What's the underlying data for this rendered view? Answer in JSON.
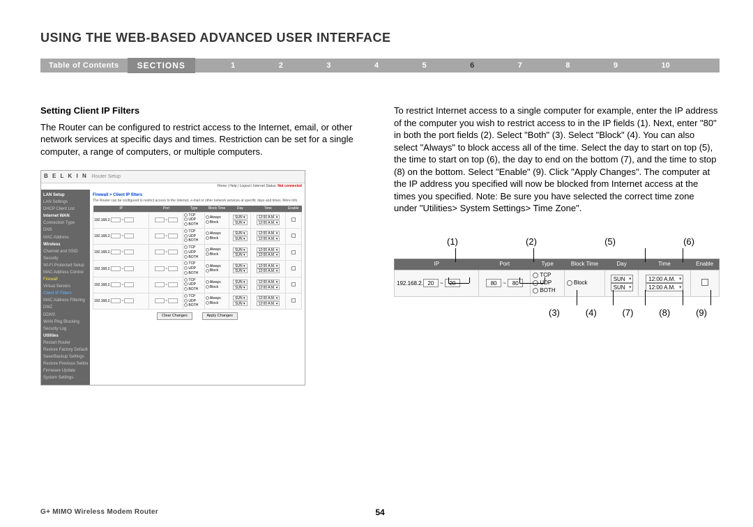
{
  "page_title": "USING THE WEB-BASED ADVANCED USER INTERFACE",
  "nav": {
    "toc_label": "Table of Contents",
    "sections_label": "SECTIONS",
    "items": [
      "1",
      "2",
      "3",
      "4",
      "5",
      "6",
      "7",
      "8",
      "9",
      "10"
    ],
    "active": "6"
  },
  "left": {
    "heading": "Setting Client IP Filters",
    "para": "The Router can be configured to restrict access to the Internet, email, or other network services at specific days and times. Restriction can be set for a single computer, a range of computers, or multiple computers."
  },
  "right": {
    "para": "To restrict Internet access to a single computer for example, enter the IP address of the computer you wish to restrict access to in the IP fields (1). Next, enter \"80\" in both the port fields (2). Select \"Both\" (3). Select \"Block\" (4). You can also select \"Always\" to block access all of the time. Select the day to start on top (5), the time to start on top (6), the day to end on the bottom (7), and the time to stop (8) on the bottom. Select \"Enable\" (9). Click \"Apply Changes\". The computer at the IP address you specified will now be blocked from Internet access at the times you specified. Note: Be sure you have selected the correct time zone under \"Utilities> System Settings> Time Zone\"."
  },
  "router": {
    "logo": "B E L K I N",
    "subtitle": "Router Setup",
    "home_links": "Home | Help | Logout | Internet Status: ",
    "status": "Not connected",
    "crumb": "Firewall > Client IP filters",
    "desc": "The Router can be configured to restrict access to the Internet, e-mail or other network services at specific days and times. More Info",
    "sidebar": [
      {
        "t": "LAN Setup",
        "c": "hdr"
      },
      {
        "t": "LAN Settings",
        "c": ""
      },
      {
        "t": "DHCP Client List",
        "c": ""
      },
      {
        "t": "Internet WAN",
        "c": "hdr"
      },
      {
        "t": "Connection Type",
        "c": ""
      },
      {
        "t": "DNS",
        "c": ""
      },
      {
        "t": "MAC Address",
        "c": ""
      },
      {
        "t": "Wireless",
        "c": "hdr"
      },
      {
        "t": "Channel and SSID",
        "c": ""
      },
      {
        "t": "Security",
        "c": ""
      },
      {
        "t": "Wi-Fi Protected Setup",
        "c": ""
      },
      {
        "t": "MAC Address Control",
        "c": ""
      },
      {
        "t": "Firewall",
        "c": "hl-y"
      },
      {
        "t": "Virtual Servers",
        "c": ""
      },
      {
        "t": "Client IP Filters",
        "c": "hl-b"
      },
      {
        "t": "MAC Address Filtering",
        "c": ""
      },
      {
        "t": "DMZ",
        "c": ""
      },
      {
        "t": "DDNS",
        "c": ""
      },
      {
        "t": "WAN Ping Blocking",
        "c": ""
      },
      {
        "t": "Security Log",
        "c": ""
      },
      {
        "t": "Utilities",
        "c": "hdr"
      },
      {
        "t": "Restart Router",
        "c": ""
      },
      {
        "t": "Restore Factory Defaults",
        "c": ""
      },
      {
        "t": "Save/Backup Settings",
        "c": ""
      },
      {
        "t": "Restore Previous Settings",
        "c": ""
      },
      {
        "t": "Firmware Update",
        "c": ""
      },
      {
        "t": "System Settings",
        "c": ""
      }
    ],
    "headers": [
      "IP",
      "Port",
      "Type",
      "Block Time",
      "Day",
      "Time",
      "Enable"
    ],
    "ip_prefix": "192.168.2.",
    "type_opts": [
      "TCP",
      "UDP",
      "BOTH"
    ],
    "bt_opts": [
      "Always",
      "Block"
    ],
    "day": "SUN",
    "time": "12:00 A.M.",
    "btn_clear": "Clear Changes",
    "btn_apply": "Apply Changes"
  },
  "callout": {
    "top": [
      "(1)",
      "(2)",
      "(5)",
      "(6)"
    ],
    "headers": [
      "IP",
      "Port",
      "Type",
      "Block Time",
      "Day",
      "Time",
      "Enable"
    ],
    "ip_prefix": "192.168.2.",
    "ip_a": "20",
    "ip_b": "20",
    "port_a": "80",
    "port_b": "80",
    "types": [
      "TCP",
      "UDP",
      "BOTH"
    ],
    "block": "Block",
    "day": "SUN",
    "time": "12:00 A.M.",
    "bot": [
      "(3)",
      "(4)",
      "(7)",
      "(8)",
      "(9)"
    ]
  },
  "footer": {
    "title": "G+ MIMO Wireless Modem Router",
    "page": "54"
  },
  "colors": {
    "nav_bg": "#a7a7a7",
    "nav_sections_bg": "#8a8a8a",
    "side_bg": "#676767",
    "th_bg": "#6a6a6a"
  }
}
